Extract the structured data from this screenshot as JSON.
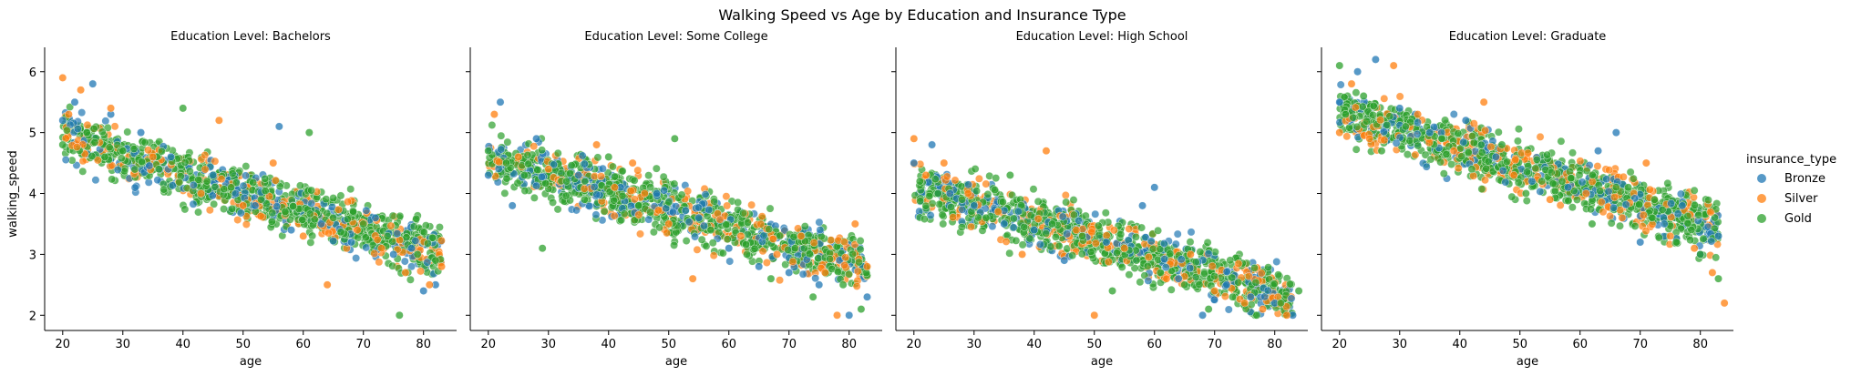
{
  "figure": {
    "title": "Walking Speed vs Age by Education and Insurance Type"
  },
  "chart_data": {
    "type": "scatter",
    "xlabel": "age",
    "ylabel": "walking_speed",
    "xlim": [
      17,
      85.5
    ],
    "ylim": [
      1.75,
      6.4
    ],
    "xticks": [
      20,
      30,
      40,
      50,
      60,
      70,
      80
    ],
    "yticks": [
      2,
      3,
      4,
      5,
      6
    ],
    "grid": false,
    "legend": {
      "title": "insurance_type",
      "position": "right",
      "entries": [
        "Bronze",
        "Silver",
        "Gold"
      ]
    },
    "colors": {
      "Bronze": "#1f77b4",
      "Silver": "#ff7f0e",
      "Gold": "#2ca02c"
    },
    "panels": [
      {
        "title": "Education Level: Bachelors",
        "trend": {
          "x": [
            20,
            83
          ],
          "y": [
            4.95,
            3.0
          ]
        },
        "series": [
          {
            "name": "Bronze",
            "x": [
              20,
              22,
              25,
              28,
              33,
              38,
              45,
              52,
              56,
              58,
              63,
              68,
              72,
              75,
              78,
              80,
              82
            ],
            "y": [
              5.2,
              5.5,
              5.8,
              5.3,
              5.0,
              4.6,
              4.3,
              3.8,
              5.1,
              3.4,
              3.5,
              3.2,
              3.6,
              3.0,
              3.1,
              2.4,
              2.5
            ]
          },
          {
            "name": "Silver",
            "x": [
              20,
              21,
              23,
              28,
              35,
              43,
              46,
              50,
              55,
              60,
              64,
              69,
              73,
              77,
              81,
              83
            ],
            "y": [
              5.9,
              5.3,
              5.7,
              5.4,
              4.6,
              4.0,
              5.2,
              3.8,
              4.5,
              3.3,
              2.5,
              3.4,
              3.1,
              2.7,
              2.5,
              2.8
            ]
          },
          {
            "name": "Gold",
            "x": [
              20,
              24,
              27,
              30,
              36,
              40,
              44,
              48,
              53,
              57,
              61,
              65,
              70,
              74,
              76,
              79,
              82
            ],
            "y": [
              4.8,
              5.0,
              4.6,
              4.7,
              4.4,
              5.4,
              4.2,
              4.1,
              3.9,
              3.7,
              5.0,
              3.6,
              3.5,
              3.3,
              2.0,
              3.0,
              2.9
            ]
          }
        ]
      },
      {
        "title": "Education Level: Some College",
        "trend": {
          "x": [
            20,
            83
          ],
          "y": [
            4.6,
            2.8
          ]
        },
        "series": [
          {
            "name": "Bronze",
            "x": [
              20,
              22,
              24,
              28,
              35,
              42,
              48,
              55,
              60,
              65,
              70,
              75,
              80,
              83
            ],
            "y": [
              4.3,
              5.5,
              3.8,
              4.9,
              4.3,
              4.1,
              4.0,
              3.6,
              3.1,
              2.8,
              2.7,
              2.5,
              2.0,
              2.3
            ]
          },
          {
            "name": "Silver",
            "x": [
              21,
              25,
              30,
              38,
              41,
              44,
              46,
              50,
              54,
              62,
              68,
              72,
              76,
              78,
              81,
              83
            ],
            "y": [
              5.3,
              4.6,
              4.4,
              4.8,
              4.1,
              4.5,
              4.0,
              3.5,
              2.6,
              3.3,
              3.0,
              3.3,
              2.7,
              2.0,
              3.5,
              2.8
            ]
          },
          {
            "name": "Gold",
            "x": [
              20,
              23,
              26,
              29,
              33,
              36,
              40,
              45,
              51,
              57,
              63,
              67,
              71,
              74,
              79,
              82
            ],
            "y": [
              4.7,
              4.5,
              4.3,
              3.1,
              4.2,
              3.9,
              4.6,
              3.8,
              4.9,
              3.4,
              3.0,
              2.6,
              3.1,
              2.3,
              2.5,
              2.1
            ]
          }
        ]
      },
      {
        "title": "Education Level: High School",
        "trend": {
          "x": [
            20,
            83
          ],
          "y": [
            4.1,
            2.3
          ]
        },
        "series": [
          {
            "name": "Bronze",
            "x": [
              20,
              23,
              26,
              30,
              35,
              40,
              45,
              52,
              58,
              60,
              64,
              68,
              72,
              76,
              80,
              83
            ],
            "y": [
              4.5,
              4.8,
              4.0,
              3.8,
              3.5,
              3.4,
              2.9,
              3.2,
              3.8,
              4.1,
              2.6,
              2.0,
              2.5,
              2.3,
              2.2,
              2.0
            ]
          },
          {
            "name": "Silver",
            "x": [
              20,
              22,
              25,
              29,
              34,
              38,
              42,
              47,
              50,
              55,
              62,
              66,
              70,
              75,
              78,
              82
            ],
            "y": [
              4.9,
              4.3,
              4.5,
              4.0,
              3.7,
              3.0,
              4.7,
              3.4,
              2.0,
              3.1,
              2.6,
              3.0,
              2.4,
              2.2,
              2.1,
              2.0
            ]
          },
          {
            "name": "Gold",
            "x": [
              21,
              24,
              28,
              32,
              36,
              43,
              48,
              53,
              57,
              61,
              65,
              69,
              73,
              77,
              81,
              84
            ],
            "y": [
              4.2,
              4.0,
              3.9,
              3.6,
              4.3,
              3.5,
              3.3,
              2.4,
              2.9,
              2.7,
              2.5,
              2.1,
              2.3,
              2.0,
              2.2,
              2.4
            ]
          }
        ]
      },
      {
        "title": "Education Level: Graduate",
        "trend": {
          "x": [
            20,
            83
          ],
          "y": [
            5.35,
            3.45
          ]
        },
        "series": [
          {
            "name": "Bronze",
            "x": [
              20,
              23,
              26,
              30,
              35,
              41,
              46,
              52,
              58,
              63,
              66,
              70,
              74,
              77,
              80,
              83
            ],
            "y": [
              5.5,
              6.0,
              6.2,
              5.4,
              5.0,
              5.2,
              4.6,
              4.2,
              4.1,
              4.7,
              5.0,
              3.2,
              3.5,
              3.8,
              3.0,
              3.3
            ]
          },
          {
            "name": "Silver",
            "x": [
              20,
              22,
              25,
              29,
              33,
              39,
              44,
              49,
              55,
              61,
              67,
              71,
              75,
              79,
              82,
              84
            ],
            "y": [
              5.0,
              5.8,
              4.9,
              6.1,
              5.3,
              4.7,
              5.5,
              4.3,
              3.9,
              4.0,
              3.6,
              4.5,
              3.3,
              3.1,
              2.7,
              2.2
            ]
          },
          {
            "name": "Gold",
            "x": [
              20,
              21,
              24,
              27,
              31,
              37,
              42,
              47,
              51,
              57,
              62,
              68,
              72,
              76,
              80,
              83
            ],
            "y": [
              6.1,
              5.3,
              5.6,
              4.7,
              5.1,
              4.9,
              4.4,
              4.8,
              4.0,
              4.2,
              3.5,
              4.1,
              3.6,
              3.2,
              3.0,
              2.6
            ]
          }
        ]
      }
    ]
  }
}
